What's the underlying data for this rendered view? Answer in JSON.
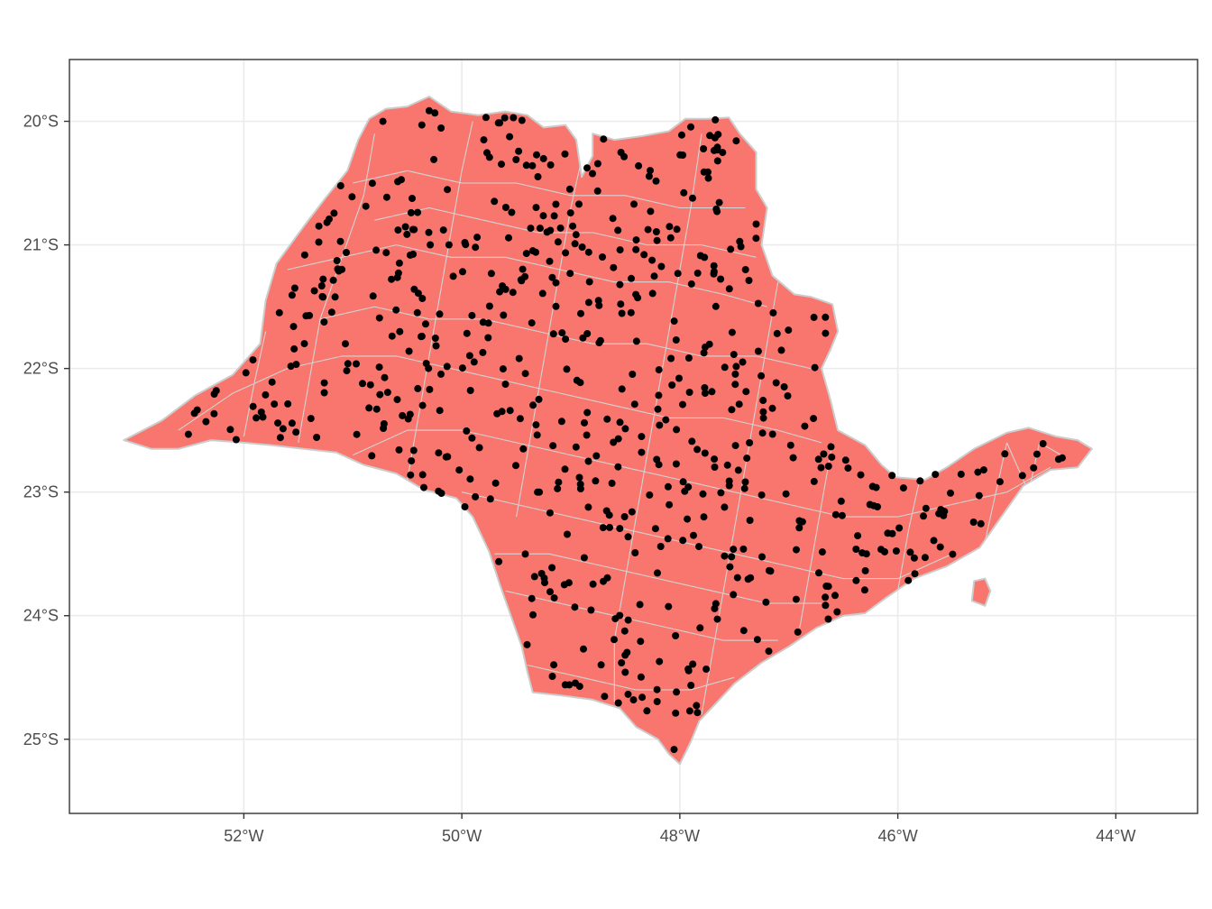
{
  "map": {
    "type": "scatter-map",
    "region_fill": "#f8766d",
    "region_border": "#cccccc",
    "point_color": "#000000",
    "panel_border": "#333333",
    "grid_color": "#ebebeb",
    "grid": true,
    "x_range": [
      -53.6,
      -43.25
    ],
    "y_range": [
      -25.6,
      -19.5
    ],
    "x_ticks": [
      {
        "value": -52,
        "label": "52°W"
      },
      {
        "value": -50,
        "label": "50°W"
      },
      {
        "value": -48,
        "label": "48°W"
      },
      {
        "value": -46,
        "label": "46°W"
      },
      {
        "value": -44,
        "label": "44°W"
      }
    ],
    "y_ticks": [
      {
        "value": -20,
        "label": "20°S"
      },
      {
        "value": -21,
        "label": "21°S"
      },
      {
        "value": -22,
        "label": "22°S"
      },
      {
        "value": -23,
        "label": "23°S"
      },
      {
        "value": -24,
        "label": "24°S"
      },
      {
        "value": -25,
        "label": "25°S"
      }
    ],
    "outline": [
      [
        -53.1,
        -22.58
      ],
      [
        -52.75,
        -22.42
      ],
      [
        -52.45,
        -22.22
      ],
      [
        -52.1,
        -22.05
      ],
      [
        -51.85,
        -21.8
      ],
      [
        -51.8,
        -21.45
      ],
      [
        -51.7,
        -21.15
      ],
      [
        -51.45,
        -20.85
      ],
      [
        -51.25,
        -20.62
      ],
      [
        -51.05,
        -20.4
      ],
      [
        -50.95,
        -20.15
      ],
      [
        -50.85,
        -19.98
      ],
      [
        -50.7,
        -19.9
      ],
      [
        -50.5,
        -19.88
      ],
      [
        -50.3,
        -19.8
      ],
      [
        -50.1,
        -19.92
      ],
      [
        -49.85,
        -19.95
      ],
      [
        -49.6,
        -19.92
      ],
      [
        -49.4,
        -19.95
      ],
      [
        -49.25,
        -20.05
      ],
      [
        -49.05,
        -20.03
      ],
      [
        -48.95,
        -20.15
      ],
      [
        -48.9,
        -20.45
      ],
      [
        -48.8,
        -20.28
      ],
      [
        -48.8,
        -20.1
      ],
      [
        -48.6,
        -20.15
      ],
      [
        -48.35,
        -20.12
      ],
      [
        -48.1,
        -20.08
      ],
      [
        -47.95,
        -19.98
      ],
      [
        -47.75,
        -19.98
      ],
      [
        -47.55,
        -19.97
      ],
      [
        -47.45,
        -20.1
      ],
      [
        -47.3,
        -20.25
      ],
      [
        -47.3,
        -20.55
      ],
      [
        -47.2,
        -20.7
      ],
      [
        -47.25,
        -21.0
      ],
      [
        -47.15,
        -21.25
      ],
      [
        -46.95,
        -21.4
      ],
      [
        -46.8,
        -21.42
      ],
      [
        -46.6,
        -21.48
      ],
      [
        -46.55,
        -21.7
      ],
      [
        -46.62,
        -21.85
      ],
      [
        -46.7,
        -22.0
      ],
      [
        -46.62,
        -22.25
      ],
      [
        -46.55,
        -22.5
      ],
      [
        -46.3,
        -22.62
      ],
      [
        -46.15,
        -22.78
      ],
      [
        -46.02,
        -22.88
      ],
      [
        -45.75,
        -22.9
      ],
      [
        -45.55,
        -22.8
      ],
      [
        -45.3,
        -22.65
      ],
      [
        -45.0,
        -22.52
      ],
      [
        -44.8,
        -22.48
      ],
      [
        -44.55,
        -22.55
      ],
      [
        -44.35,
        -22.58
      ],
      [
        -44.22,
        -22.65
      ],
      [
        -44.35,
        -22.8
      ],
      [
        -44.6,
        -22.82
      ],
      [
        -44.85,
        -22.95
      ],
      [
        -45.05,
        -23.2
      ],
      [
        -45.25,
        -23.45
      ],
      [
        -45.55,
        -23.6
      ],
      [
        -45.85,
        -23.7
      ],
      [
        -46.1,
        -23.85
      ],
      [
        -46.3,
        -23.98
      ],
      [
        -46.5,
        -24.0
      ],
      [
        -46.75,
        -24.1
      ],
      [
        -47.0,
        -24.25
      ],
      [
        -47.25,
        -24.38
      ],
      [
        -47.5,
        -24.55
      ],
      [
        -47.68,
        -24.72
      ],
      [
        -47.82,
        -24.85
      ],
      [
        -47.9,
        -25.02
      ],
      [
        -48.0,
        -25.2
      ],
      [
        -48.1,
        -25.12
      ],
      [
        -48.2,
        -25.0
      ],
      [
        -48.4,
        -24.9
      ],
      [
        -48.55,
        -24.75
      ],
      [
        -48.8,
        -24.68
      ],
      [
        -49.05,
        -24.65
      ],
      [
        -49.35,
        -24.62
      ],
      [
        -49.4,
        -24.45
      ],
      [
        -49.45,
        -24.25
      ],
      [
        -49.55,
        -24.0
      ],
      [
        -49.65,
        -23.75
      ],
      [
        -49.75,
        -23.48
      ],
      [
        -49.9,
        -23.2
      ],
      [
        -50.05,
        -23.05
      ],
      [
        -50.35,
        -22.98
      ],
      [
        -50.6,
        -22.85
      ],
      [
        -50.9,
        -22.78
      ],
      [
        -51.15,
        -22.68
      ],
      [
        -51.45,
        -22.65
      ],
      [
        -51.75,
        -22.62
      ],
      [
        -52.0,
        -22.6
      ],
      [
        -52.3,
        -22.58
      ],
      [
        -52.6,
        -22.65
      ],
      [
        -52.85,
        -22.65
      ],
      [
        -53.1,
        -22.58
      ]
    ],
    "island": [
      [
        -45.3,
        -23.72
      ],
      [
        -45.2,
        -23.7
      ],
      [
        -45.15,
        -23.8
      ],
      [
        -45.2,
        -23.92
      ],
      [
        -45.32,
        -23.88
      ],
      [
        -45.3,
        -23.72
      ]
    ],
    "boundaries": [
      [
        [
          -52.6,
          -22.5
        ],
        [
          -52.1,
          -22.2
        ],
        [
          -51.6,
          -22.0
        ],
        [
          -51.1,
          -21.9
        ],
        [
          -50.6,
          -21.9
        ],
        [
          -50.1,
          -22.0
        ],
        [
          -49.6,
          -22.1
        ],
        [
          -49.1,
          -22.2
        ],
        [
          -48.6,
          -22.3
        ],
        [
          -48.1,
          -22.4
        ],
        [
          -47.6,
          -22.4
        ],
        [
          -47.1,
          -22.5
        ],
        [
          -46.7,
          -22.6
        ]
      ],
      [
        [
          -51.6,
          -21.2
        ],
        [
          -51.1,
          -21.1
        ],
        [
          -50.6,
          -21.0
        ],
        [
          -50.1,
          -21.1
        ],
        [
          -49.6,
          -21.1
        ],
        [
          -49.1,
          -21.2
        ],
        [
          -48.6,
          -21.3
        ],
        [
          -48.1,
          -21.3
        ],
        [
          -47.6,
          -21.4
        ],
        [
          -47.2,
          -21.5
        ]
      ],
      [
        [
          -51.0,
          -20.5
        ],
        [
          -50.5,
          -20.4
        ],
        [
          -50.0,
          -20.5
        ],
        [
          -49.5,
          -20.5
        ],
        [
          -49.0,
          -20.6
        ],
        [
          -48.5,
          -20.6
        ],
        [
          -48.0,
          -20.7
        ],
        [
          -47.4,
          -20.7
        ]
      ],
      [
        [
          -50.0,
          -23.0
        ],
        [
          -49.5,
          -23.1
        ],
        [
          -49.0,
          -23.2
        ],
        [
          -48.5,
          -23.3
        ],
        [
          -48.0,
          -23.4
        ],
        [
          -47.5,
          -23.5
        ],
        [
          -47.0,
          -23.6
        ],
        [
          -46.5,
          -23.7
        ],
        [
          -46.0,
          -23.7
        ],
        [
          -45.5,
          -23.5
        ]
      ],
      [
        [
          -49.6,
          -23.8
        ],
        [
          -49.1,
          -23.9
        ],
        [
          -48.6,
          -24.0
        ],
        [
          -48.1,
          -24.1
        ],
        [
          -47.6,
          -24.2
        ],
        [
          -47.1,
          -24.2
        ]
      ],
      [
        [
          -49.4,
          -24.4
        ],
        [
          -48.9,
          -24.5
        ],
        [
          -48.4,
          -24.6
        ],
        [
          -47.9,
          -24.6
        ],
        [
          -47.5,
          -24.5
        ]
      ],
      [
        [
          -51.5,
          -22.6
        ],
        [
          -51.4,
          -22.1
        ],
        [
          -51.3,
          -21.6
        ],
        [
          -51.1,
          -21.1
        ],
        [
          -50.9,
          -20.6
        ],
        [
          -50.8,
          -20.1
        ]
      ],
      [
        [
          -50.5,
          -22.9
        ],
        [
          -50.4,
          -22.4
        ],
        [
          -50.3,
          -21.9
        ],
        [
          -50.2,
          -21.4
        ],
        [
          -50.1,
          -20.9
        ],
        [
          -50.0,
          -20.4
        ],
        [
          -49.9,
          -20.0
        ]
      ],
      [
        [
          -49.5,
          -23.2
        ],
        [
          -49.4,
          -22.7
        ],
        [
          -49.3,
          -22.2
        ],
        [
          -49.2,
          -21.7
        ],
        [
          -49.1,
          -21.2
        ],
        [
          -49.0,
          -20.7
        ],
        [
          -48.9,
          -20.3
        ]
      ],
      [
        [
          -48.6,
          -24.7
        ],
        [
          -48.6,
          -24.2
        ],
        [
          -48.5,
          -23.7
        ],
        [
          -48.4,
          -23.2
        ],
        [
          -48.3,
          -22.7
        ],
        [
          -48.2,
          -22.2
        ],
        [
          -48.1,
          -21.7
        ],
        [
          -48.0,
          -21.2
        ],
        [
          -47.9,
          -20.7
        ],
        [
          -47.8,
          -20.1
        ]
      ],
      [
        [
          -47.8,
          -24.8
        ],
        [
          -47.7,
          -24.3
        ],
        [
          -47.6,
          -23.8
        ],
        [
          -47.5,
          -23.3
        ],
        [
          -47.4,
          -22.8
        ],
        [
          -47.3,
          -22.3
        ],
        [
          -47.2,
          -21.8
        ],
        [
          -47.1,
          -21.3
        ]
      ],
      [
        [
          -46.9,
          -24.1
        ],
        [
          -46.8,
          -23.6
        ],
        [
          -46.7,
          -23.1
        ],
        [
          -46.6,
          -22.6
        ]
      ],
      [
        [
          -46.0,
          -23.8
        ],
        [
          -45.9,
          -23.3
        ],
        [
          -45.8,
          -22.9
        ]
      ],
      [
        [
          -45.2,
          -23.4
        ],
        [
          -45.1,
          -23.0
        ],
        [
          -45.0,
          -22.6
        ]
      ],
      [
        [
          -52.0,
          -22.55
        ],
        [
          -51.9,
          -22.1
        ],
        [
          -51.8,
          -21.7
        ]
      ],
      [
        [
          -50.8,
          -20.8
        ],
        [
          -50.3,
          -20.7
        ],
        [
          -49.8,
          -20.8
        ],
        [
          -49.3,
          -20.9
        ],
        [
          -48.8,
          -20.9
        ],
        [
          -48.3,
          -21.0
        ],
        [
          -47.8,
          -21.0
        ],
        [
          -47.3,
          -21.1
        ]
      ],
      [
        [
          -51.3,
          -21.6
        ],
        [
          -50.8,
          -21.5
        ],
        [
          -50.3,
          -21.6
        ],
        [
          -49.8,
          -21.6
        ],
        [
          -49.3,
          -21.7
        ],
        [
          -48.8,
          -21.8
        ],
        [
          -48.3,
          -21.8
        ],
        [
          -47.8,
          -21.9
        ],
        [
          -47.3,
          -21.9
        ],
        [
          -46.8,
          -22.0
        ]
      ],
      [
        [
          -51.0,
          -22.7
        ],
        [
          -50.5,
          -22.5
        ],
        [
          -50.0,
          -22.5
        ],
        [
          -49.5,
          -22.6
        ],
        [
          -49.0,
          -22.7
        ],
        [
          -48.5,
          -22.8
        ],
        [
          -48.0,
          -22.9
        ],
        [
          -47.5,
          -23.0
        ],
        [
          -47.0,
          -23.1
        ],
        [
          -46.5,
          -23.2
        ],
        [
          -46.0,
          -23.2
        ],
        [
          -45.5,
          -23.1
        ],
        [
          -45.0,
          -23.0
        ],
        [
          -44.6,
          -22.8
        ]
      ],
      [
        [
          -49.7,
          -23.5
        ],
        [
          -49.2,
          -23.5
        ],
        [
          -48.7,
          -23.6
        ],
        [
          -48.2,
          -23.7
        ],
        [
          -47.7,
          -23.8
        ],
        [
          -47.2,
          -23.9
        ],
        [
          -46.7,
          -23.9
        ]
      ],
      [
        [
          -45.0,
          -22.6
        ],
        [
          -44.8,
          -23.0
        ],
        [
          -44.7,
          -22.6
        ],
        [
          -44.5,
          -22.7
        ]
      ]
    ]
  }
}
